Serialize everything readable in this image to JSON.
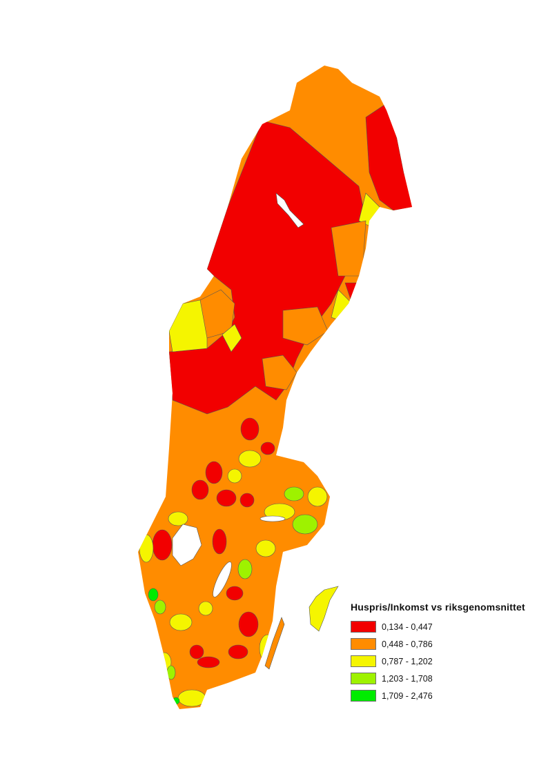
{
  "legend": {
    "title": "Huspris/Inkomst vs riksgenomsnittet",
    "classes": [
      {
        "label": "0,134 - 0,447",
        "color": "#f20000"
      },
      {
        "label": "0,448 - 0,786",
        "color": "#ff8c00"
      },
      {
        "label": "0,787 - 1,202",
        "color": "#f5f500"
      },
      {
        "label": "1,203 - 1,708",
        "color": "#9ef200"
      },
      {
        "label": "1,709 - 2,476",
        "color": "#00ec00"
      }
    ]
  }
}
